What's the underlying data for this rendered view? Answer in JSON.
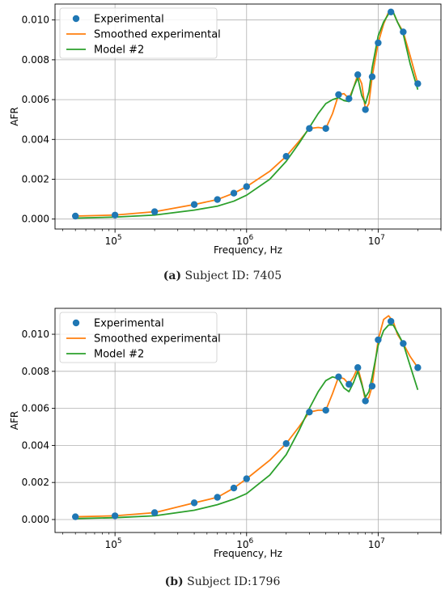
{
  "chart_data": [
    {
      "type": "line",
      "xscale": "log",
      "xlabel": "Frequency, Hz",
      "ylabel": "AFR",
      "xlim": [
        35000,
        30000000
      ],
      "ylim": [
        -0.0005,
        0.0108
      ],
      "yticks": [
        "0.000",
        "0.002",
        "0.004",
        "0.006",
        "0.008",
        "0.010"
      ],
      "xticks": [
        {
          "base": "10",
          "exp": "5"
        },
        {
          "base": "10",
          "exp": "6"
        },
        {
          "base": "10",
          "exp": "7"
        }
      ],
      "grid": true,
      "legend_position": "top-left",
      "caption": {
        "label": "(a)",
        "text": " Subject ID: 7405"
      },
      "series": [
        {
          "name": "Experimental",
          "kind": "scatter",
          "color": "#1f77b4",
          "x": [
            50000,
            100000,
            200000,
            400000,
            600000,
            800000,
            1000000,
            2000000,
            3000000,
            4000000,
            5000000,
            6000000,
            7000000,
            8000000,
            9000000,
            10000000,
            12500000,
            15500000,
            20000000
          ],
          "y": [
            0.00015,
            0.0002,
            0.00037,
            0.00073,
            0.00098,
            0.0013,
            0.00163,
            0.00315,
            0.00455,
            0.00455,
            0.00625,
            0.00605,
            0.00725,
            0.0055,
            0.00715,
            0.00885,
            0.0104,
            0.0094,
            0.0068
          ]
        },
        {
          "name": "Smoothed experimental",
          "kind": "line",
          "color": "#ff7f0e",
          "x": [
            50000,
            100000,
            200000,
            400000,
            600000,
            800000,
            1000000,
            1500000,
            2000000,
            2500000,
            3000000,
            3500000,
            4000000,
            4500000,
            5000000,
            5500000,
            6000000,
            6500000,
            7000000,
            7500000,
            8000000,
            8500000,
            9000000,
            10000000,
            11000000,
            12000000,
            13000000,
            14000000,
            15500000,
            17500000,
            20000000
          ],
          "y": [
            0.00015,
            0.0002,
            0.00037,
            0.00073,
            0.00098,
            0.0013,
            0.00163,
            0.0024,
            0.00315,
            0.0039,
            0.00455,
            0.0046,
            0.00455,
            0.0053,
            0.00625,
            0.0063,
            0.00605,
            0.0066,
            0.00725,
            0.0068,
            0.0055,
            0.0058,
            0.00715,
            0.00885,
            0.0098,
            0.0104,
            0.0104,
            0.0099,
            0.0094,
            0.0082,
            0.0068
          ]
        },
        {
          "name": "Model #2",
          "kind": "line",
          "color": "#2ca02c",
          "x": [
            50000,
            100000,
            200000,
            400000,
            600000,
            800000,
            1000000,
            1500000,
            2000000,
            2500000,
            3000000,
            3500000,
            4000000,
            4500000,
            5000000,
            5500000,
            6000000,
            6500000,
            7000000,
            7500000,
            8000000,
            8500000,
            9000000,
            10000000,
            11000000,
            12000000,
            13000000,
            14000000,
            15500000,
            17500000,
            20000000
          ],
          "y": [
            5e-05,
            0.0001,
            0.0002,
            0.00045,
            0.00065,
            0.0009,
            0.0012,
            0.002,
            0.0029,
            0.0038,
            0.0046,
            0.0053,
            0.0058,
            0.006,
            0.0061,
            0.00595,
            0.0059,
            0.0066,
            0.0071,
            0.0062,
            0.0058,
            0.0064,
            0.0076,
            0.0092,
            0.0099,
            0.0103,
            0.0104,
            0.0099,
            0.0093,
            0.0078,
            0.0065
          ]
        }
      ]
    },
    {
      "type": "line",
      "xscale": "log",
      "xlabel": "Frequency, Hz",
      "ylabel": "AFR",
      "xlim": [
        35000,
        30000000
      ],
      "ylim": [
        -0.0007,
        0.0114
      ],
      "yticks": [
        "0.000",
        "0.002",
        "0.004",
        "0.006",
        "0.008",
        "0.010"
      ],
      "xticks": [
        {
          "base": "10",
          "exp": "5"
        },
        {
          "base": "10",
          "exp": "6"
        },
        {
          "base": "10",
          "exp": "7"
        }
      ],
      "grid": true,
      "legend_position": "top-left",
      "caption": {
        "label": "(b)",
        "text": " Subject ID:1796"
      },
      "series": [
        {
          "name": "Experimental",
          "kind": "scatter",
          "color": "#1f77b4",
          "x": [
            50000,
            100000,
            200000,
            400000,
            600000,
            800000,
            1000000,
            2000000,
            3000000,
            4000000,
            5000000,
            6000000,
            7000000,
            8000000,
            9000000,
            10000000,
            12500000,
            15500000,
            20000000
          ],
          "y": [
            0.00015,
            0.0002,
            0.00037,
            0.0009,
            0.0012,
            0.0017,
            0.0022,
            0.0041,
            0.0058,
            0.0059,
            0.0077,
            0.0073,
            0.0082,
            0.0064,
            0.0072,
            0.0097,
            0.0107,
            0.0095,
            0.0082
          ]
        },
        {
          "name": "Smoothed experimental",
          "kind": "line",
          "color": "#ff7f0e",
          "x": [
            50000,
            100000,
            200000,
            400000,
            600000,
            800000,
            1000000,
            1500000,
            2000000,
            2500000,
            3000000,
            3500000,
            4000000,
            4500000,
            5000000,
            5500000,
            6000000,
            6500000,
            7000000,
            7500000,
            8000000,
            8500000,
            9000000,
            10000000,
            11000000,
            12000000,
            13000000,
            14000000,
            15500000,
            17500000,
            20000000
          ],
          "y": [
            0.00015,
            0.0002,
            0.00037,
            0.0009,
            0.0012,
            0.0017,
            0.0022,
            0.0032,
            0.0041,
            0.005,
            0.0058,
            0.0059,
            0.0059,
            0.0068,
            0.0077,
            0.0076,
            0.0073,
            0.0077,
            0.0082,
            0.0074,
            0.0064,
            0.0066,
            0.0072,
            0.0097,
            0.0108,
            0.011,
            0.0107,
            0.01,
            0.0095,
            0.0088,
            0.0082
          ]
        },
        {
          "name": "Model #2",
          "kind": "line",
          "color": "#2ca02c",
          "x": [
            50000,
            100000,
            200000,
            400000,
            600000,
            800000,
            1000000,
            1500000,
            2000000,
            2500000,
            3000000,
            3500000,
            4000000,
            4500000,
            5000000,
            5500000,
            6000000,
            6500000,
            7000000,
            7500000,
            8000000,
            8500000,
            9000000,
            10000000,
            11000000,
            12000000,
            13000000,
            14000000,
            15500000,
            17500000,
            20000000
          ],
          "y": [
            5e-05,
            0.0001,
            0.0002,
            0.0005,
            0.0008,
            0.0011,
            0.0014,
            0.0024,
            0.0035,
            0.0048,
            0.006,
            0.0069,
            0.0075,
            0.0077,
            0.0076,
            0.0071,
            0.0069,
            0.0074,
            0.008,
            0.0073,
            0.0066,
            0.0069,
            0.0077,
            0.0094,
            0.0102,
            0.0105,
            0.0105,
            0.0101,
            0.0095,
            0.0083,
            0.007
          ]
        }
      ]
    }
  ]
}
